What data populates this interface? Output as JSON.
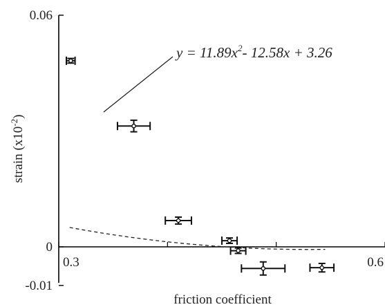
{
  "chart_data": {
    "type": "scatter",
    "xlabel": "friction coefficient",
    "ylabel": "strain (x10",
    "ylabel_exp": "-2",
    "ylabel_close": ")",
    "xlim": [
      0.3,
      0.6
    ],
    "ylim": [
      -0.01,
      0.06
    ],
    "x_ticks": [
      {
        "value": 0.3,
        "label": "0.3"
      },
      {
        "value": 0.6,
        "label": "0.6"
      }
    ],
    "x_minor_ticks": [
      0.3,
      0.4,
      0.5,
      0.6
    ],
    "y_ticks": [
      {
        "value": 0.06,
        "label": "0.06"
      },
      {
        "value": 0,
        "label": "0"
      },
      {
        "value": -0.01,
        "label": "-0.01"
      }
    ],
    "points": [
      {
        "x": 0.311,
        "y": 0.0482,
        "xerr": 0.004,
        "yerr": 0.0006
      },
      {
        "x": 0.369,
        "y": 0.0313,
        "xerr": 0.015,
        "yerr": 0.0015
      },
      {
        "x": 0.41,
        "y": 0.0068,
        "xerr": 0.012,
        "yerr": 0.0009
      },
      {
        "x": 0.457,
        "y": 0.0016,
        "xerr": 0.007,
        "yerr": 0.0007
      },
      {
        "x": 0.465,
        "y": -0.001,
        "xerr": 0.007,
        "yerr": 0.0007
      },
      {
        "x": 0.488,
        "y": -0.0056,
        "xerr": 0.02,
        "yerr": 0.0017
      },
      {
        "x": 0.542,
        "y": -0.0054,
        "xerr": 0.011,
        "yerr": 0.0011
      }
    ],
    "fit": {
      "equation_parts": {
        "prefix": "y = 11.89x",
        "sup": "2",
        "suffix": "- 12.58x + 3.26"
      },
      "a": 11.89,
      "b": -12.58,
      "c": 3.26,
      "x_range": [
        0.31,
        0.545
      ],
      "style": "dashed"
    }
  }
}
